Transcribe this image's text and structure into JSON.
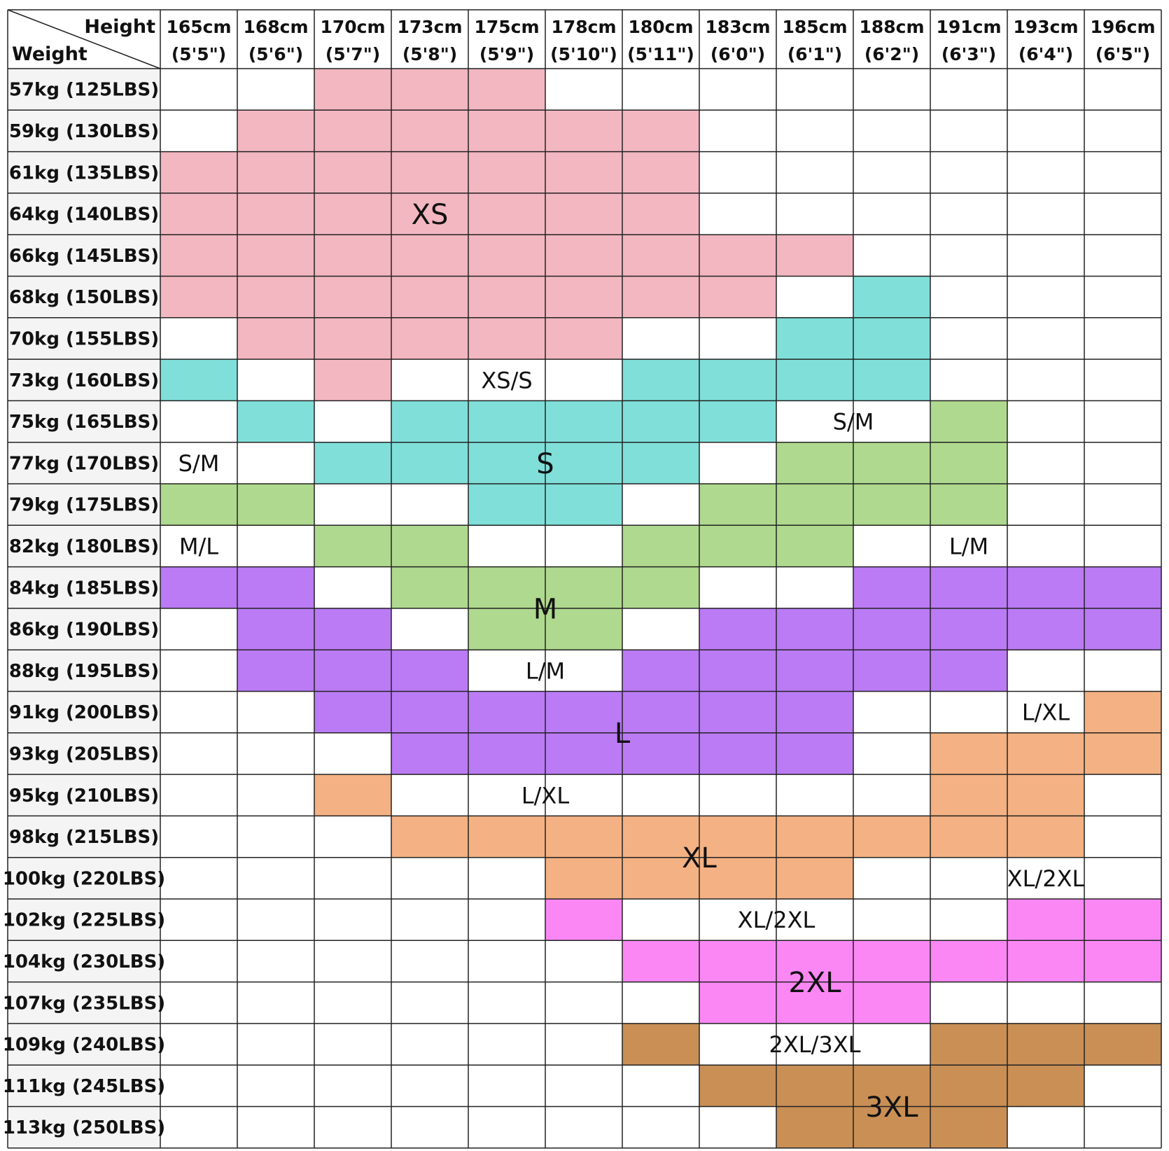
{
  "chart_data": {
    "type": "table",
    "corner": {
      "column_label": "Height",
      "row_label": "Weight"
    },
    "columns": [
      {
        "cm": "165cm",
        "ft": "(5'5\")"
      },
      {
        "cm": "168cm",
        "ft": "(5'6\")"
      },
      {
        "cm": "170cm",
        "ft": "(5'7\")"
      },
      {
        "cm": "173cm",
        "ft": "(5'8\")"
      },
      {
        "cm": "175cm",
        "ft": "(5'9\")"
      },
      {
        "cm": "178cm",
        "ft": "(5'10\")"
      },
      {
        "cm": "180cm",
        "ft": "(5'11\")"
      },
      {
        "cm": "183cm",
        "ft": "(6'0\")"
      },
      {
        "cm": "185cm",
        "ft": "(6'1\")"
      },
      {
        "cm": "188cm",
        "ft": "(6'2\")"
      },
      {
        "cm": "191cm",
        "ft": "(6'3\")"
      },
      {
        "cm": "193cm",
        "ft": "(6'4\")"
      },
      {
        "cm": "196cm",
        "ft": "(6'5\")"
      }
    ],
    "rows": [
      "57kg (125LBS)",
      "59kg (130LBS)",
      "61kg (135LBS)",
      "64kg (140LBS)",
      "66kg (145LBS)",
      "68kg (150LBS)",
      "70kg (155LBS)",
      "73kg (160LBS)",
      "75kg (165LBS)",
      "77kg (170LBS)",
      "79kg (175LBS)",
      "82kg (180LBS)",
      "84kg (185LBS)",
      "86kg (190LBS)",
      "88kg (195LBS)",
      "91kg (200LBS)",
      "93kg (205LBS)",
      "95kg (210LBS)",
      "98kg (215LBS)",
      "100kg (220LBS)",
      "102kg (225LBS)",
      "104kg (230LBS)",
      "107kg (235LBS)",
      "109kg (240LBS)",
      "111kg (245LBS)",
      "113kg (250LBS)"
    ],
    "size_colors": {
      "XS": "#f2b7c0",
      "S": "#80dfd9",
      "M": "#afd98e",
      "L": "#bb7bf5",
      "XL": "#f4b183",
      "2XL": "#fb87f5",
      "3XL": "#c98f55"
    },
    "cell_sizes": [
      [
        null,
        null,
        "XS",
        "XS",
        "XS",
        null,
        null,
        null,
        null,
        null,
        null,
        null,
        null
      ],
      [
        null,
        "XS",
        "XS",
        "XS",
        "XS",
        "XS",
        "XS",
        null,
        null,
        null,
        null,
        null,
        null
      ],
      [
        "XS",
        "XS",
        "XS",
        "XS",
        "XS",
        "XS",
        "XS",
        null,
        null,
        null,
        null,
        null,
        null
      ],
      [
        "XS",
        "XS",
        "XS",
        "XS",
        "XS",
        "XS",
        "XS",
        null,
        null,
        null,
        null,
        null,
        null
      ],
      [
        "XS",
        "XS",
        "XS",
        "XS",
        "XS",
        "XS",
        "XS",
        "XS",
        "XS",
        null,
        null,
        null,
        null
      ],
      [
        "XS",
        "XS",
        "XS",
        "XS",
        "XS",
        "XS",
        "XS",
        "XS",
        null,
        "S",
        null,
        null,
        null
      ],
      [
        null,
        "XS",
        "XS",
        "XS",
        "XS",
        "XS",
        null,
        null,
        "S",
        "S",
        null,
        null,
        null
      ],
      [
        "S",
        null,
        "XS",
        null,
        null,
        null,
        "S",
        "S",
        "S",
        "S",
        null,
        null,
        null
      ],
      [
        null,
        "S",
        null,
        "S",
        "S",
        "S",
        "S",
        "S",
        null,
        null,
        "M",
        null,
        null
      ],
      [
        null,
        null,
        "S",
        "S",
        "S",
        "S",
        "S",
        null,
        "M",
        "M",
        "M",
        null,
        null
      ],
      [
        "M",
        "M",
        null,
        null,
        "S",
        "S",
        null,
        "M",
        "M",
        "M",
        "M",
        null,
        null
      ],
      [
        null,
        null,
        "M",
        "M",
        null,
        null,
        "M",
        "M",
        "M",
        null,
        null,
        null,
        null
      ],
      [
        "L",
        "L",
        null,
        "M",
        "M",
        "M",
        "M",
        null,
        null,
        "L",
        "L",
        "L",
        "L"
      ],
      [
        null,
        "L",
        "L",
        null,
        "M",
        "M",
        null,
        "L",
        "L",
        "L",
        "L",
        "L",
        "L"
      ],
      [
        null,
        "L",
        "L",
        "L",
        null,
        null,
        "L",
        "L",
        "L",
        "L",
        "L",
        null,
        null
      ],
      [
        null,
        null,
        "L",
        "L",
        "L",
        "L",
        "L",
        "L",
        "L",
        null,
        null,
        null,
        "XL"
      ],
      [
        null,
        null,
        null,
        "L",
        "L",
        "L",
        "L",
        "L",
        "L",
        null,
        "XL",
        "XL",
        "XL"
      ],
      [
        null,
        null,
        "XL",
        null,
        null,
        null,
        null,
        null,
        null,
        null,
        "XL",
        "XL",
        null
      ],
      [
        null,
        null,
        null,
        "XL",
        "XL",
        "XL",
        "XL",
        "XL",
        "XL",
        "XL",
        "XL",
        "XL",
        null
      ],
      [
        null,
        null,
        null,
        null,
        null,
        "XL",
        "XL",
        "XL",
        "XL",
        null,
        null,
        null,
        null
      ],
      [
        null,
        null,
        null,
        null,
        null,
        "2XL",
        null,
        null,
        null,
        null,
        null,
        "2XL",
        "2XL"
      ],
      [
        null,
        null,
        null,
        null,
        null,
        null,
        "2XL",
        "2XL",
        "2XL",
        "2XL",
        "2XL",
        "2XL",
        "2XL"
      ],
      [
        null,
        null,
        null,
        null,
        null,
        null,
        null,
        "2XL",
        "2XL",
        "2XL",
        null,
        null,
        null
      ],
      [
        null,
        null,
        null,
        null,
        null,
        null,
        "3XL",
        null,
        null,
        null,
        "3XL",
        "3XL",
        "3XL"
      ],
      [
        null,
        null,
        null,
        null,
        null,
        null,
        null,
        "3XL",
        "3XL",
        "3XL",
        "3XL",
        "3XL",
        null
      ],
      [
        null,
        null,
        null,
        null,
        null,
        null,
        null,
        null,
        "3XL",
        "3XL",
        "3XL",
        null,
        null
      ]
    ],
    "zone_labels": [
      {
        "text": "XS",
        "row": 3.5,
        "col": 3.5,
        "size": "large"
      },
      {
        "text": "XS/S",
        "row": 7.5,
        "col": 4.5,
        "size": "medium"
      },
      {
        "text": "S/M",
        "row": 8.5,
        "col": 9.0,
        "size": "medium"
      },
      {
        "text": "S/M",
        "row": 9.5,
        "col": 0.5,
        "size": "medium"
      },
      {
        "text": "S",
        "row": 9.5,
        "col": 5.0,
        "size": "large"
      },
      {
        "text": "M/L",
        "row": 11.5,
        "col": 0.5,
        "size": "medium"
      },
      {
        "text": "L/M",
        "row": 11.5,
        "col": 10.5,
        "size": "medium"
      },
      {
        "text": "M",
        "row": 13.0,
        "col": 5.0,
        "size": "large"
      },
      {
        "text": "L/M",
        "row": 14.5,
        "col": 5.0,
        "size": "medium"
      },
      {
        "text": "L",
        "row": 16.0,
        "col": 6.0,
        "size": "large"
      },
      {
        "text": "L/XL",
        "row": 15.5,
        "col": 11.5,
        "size": "medium"
      },
      {
        "text": "L/XL",
        "row": 17.5,
        "col": 5.0,
        "size": "medium"
      },
      {
        "text": "XL",
        "row": 19.0,
        "col": 7.0,
        "size": "large"
      },
      {
        "text": "XL/2XL",
        "row": 19.5,
        "col": 11.5,
        "size": "medium"
      },
      {
        "text": "XL/2XL",
        "row": 20.5,
        "col": 8.0,
        "size": "medium"
      },
      {
        "text": "2XL",
        "row": 22.0,
        "col": 8.5,
        "size": "large"
      },
      {
        "text": "2XL/3XL",
        "row": 23.5,
        "col": 8.5,
        "size": "medium"
      },
      {
        "text": "3XL",
        "row": 25.0,
        "col": 9.5,
        "size": "large"
      }
    ]
  }
}
